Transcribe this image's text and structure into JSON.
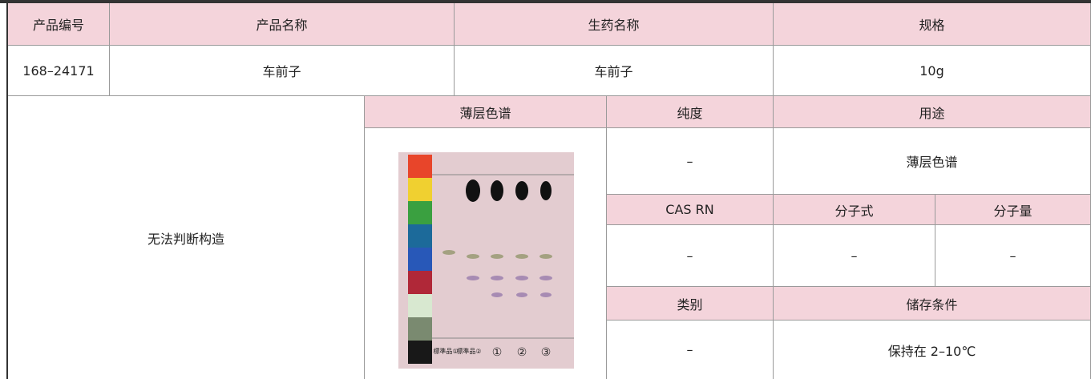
{
  "table": {
    "header": [
      "产品编号",
      "产品名称",
      "生药名称",
      "规格"
    ],
    "row": [
      "168–24171",
      "车前子",
      "车前子",
      "10g"
    ]
  },
  "details": {
    "structure": "无法判断构造",
    "tlc_header": "薄层色谱",
    "purity_header": "纯度",
    "purity": "–",
    "usage_header": "用途",
    "usage": "薄层色谱",
    "cas_header": "CAS RN",
    "cas": "–",
    "formula_header": "分子式",
    "formula": "–",
    "weight_header": "分子量",
    "weight": "–",
    "category_header": "类别",
    "category": "–",
    "storage_header": "储存条件",
    "storage": "保持在 2–10℃"
  },
  "tlc_labels": [
    "標準品①",
    "標準品②",
    "①",
    "②",
    "③"
  ]
}
